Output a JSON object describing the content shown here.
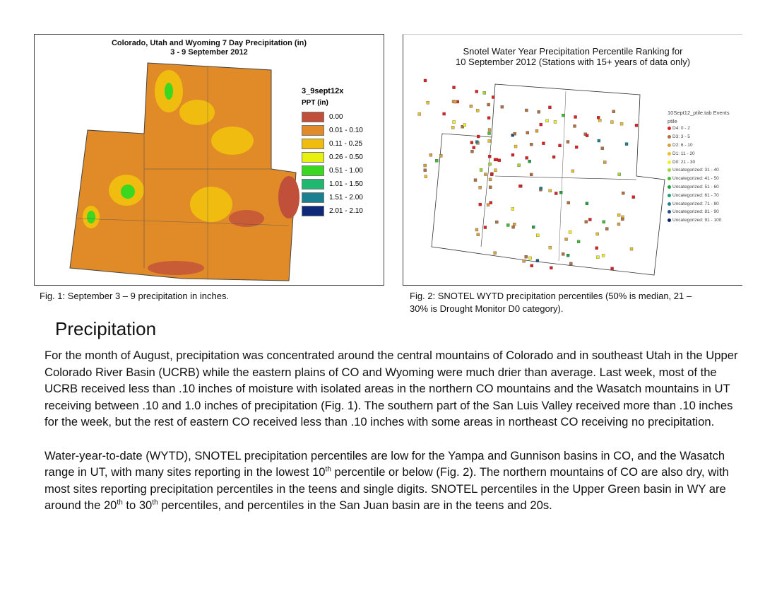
{
  "fig1": {
    "title_line1": "Colorado, Utah and Wyoming 7 Day Precipitation (in)",
    "title_line2": "3 - 9 September 2012",
    "legend_title": "3_9sept12x",
    "legend_subtitle": "PPT (in)",
    "legend": [
      {
        "label": "0.00",
        "color": "#c0503a"
      },
      {
        "label": "0.01 - 0.10",
        "color": "#e08a28"
      },
      {
        "label": "0.11 - 0.25",
        "color": "#f0bc10"
      },
      {
        "label": "0.26 - 0.50",
        "color": "#e8f010"
      },
      {
        "label": "0.51 - 1.00",
        "color": "#3ad820"
      },
      {
        "label": "1.01 - 1.50",
        "color": "#20b870"
      },
      {
        "label": "1.51 - 2.00",
        "color": "#1a8090"
      },
      {
        "label": "2.01 - 2.10",
        "color": "#102878"
      }
    ],
    "caption": "Fig. 1:  September 3 – 9 precipitation in inches."
  },
  "fig2": {
    "title_line1": "Snotel Water Year Precipitation Percentile Ranking for",
    "title_line2": "10 September 2012 (Stations with 15+ years of data only)",
    "legend_title": "10Sept12_ptile.tab Events",
    "legend_subtitle": "ptile",
    "legend": [
      {
        "label": "D4: 0 - 2",
        "color": "#e02020"
      },
      {
        "label": "D3: 3 - 5",
        "color": "#b07040"
      },
      {
        "label": "D2: 6 - 10",
        "color": "#d8a040"
      },
      {
        "label": "D1: 11 - 20",
        "color": "#e8c030"
      },
      {
        "label": "D0: 21 - 30",
        "color": "#f0f020"
      },
      {
        "label": "Uncategorized: 31 - 40",
        "color": "#a0d830"
      },
      {
        "label": "Uncategorized: 41 - 50",
        "color": "#40c030"
      },
      {
        "label": "Uncategorized: 51 - 60",
        "color": "#20a040"
      },
      {
        "label": "Uncategorized: 61 - 70",
        "color": "#20a080"
      },
      {
        "label": "Uncategorized: 71 - 80",
        "color": "#208090"
      },
      {
        "label": "Uncategorized: 81 - 90",
        "color": "#205080"
      },
      {
        "label": "Uncategorized: 91 - 100",
        "color": "#102060"
      }
    ],
    "caption_line1": "Fig. 2:  SNOTEL WYTD precipitation percentiles (50% is median, 21 –",
    "caption_line2": "30% is Drought Monitor D0 category)."
  },
  "heading": "Precipitation",
  "para1": "For the month of August, precipitation was concentrated around the central mountains of Colorado and in southeast Utah in the Upper Colorado River Basin (UCRB) while the eastern plains of CO and Wyoming were much drier than average.  Last week, most of the UCRB received less than .10 inches of moisture with isolated areas in the northern CO mountains and the Wasatch mountains in UT receiving between .10 and 1.0 inches of precipitation (Fig. 1).  The southern part of the San Luis Valley received more than .10 inches for the week, but the rest of eastern CO received less than .10 inches with some areas in northeast CO receiving no precipitation.",
  "para2": {
    "a": "Water-year-to-date (WYTD), SNOTEL precipitation percentiles are low for the Yampa and Gunnison basins in CO, and the Wasatch range in UT, with many sites reporting in the lowest 10",
    "sup1": "th",
    "b": " percentile or below (Fig. 2). The northern mountains of CO are also dry, with most sites reporting precipitation percentiles in the teens and single digits. SNOTEL percentiles in the Upper Green basin in WY are around the 20",
    "sup2": "th",
    "c": " to 30",
    "sup3": "th",
    "d": " percentiles, and percentiles in the San Juan basin are in the teens and 20s."
  }
}
